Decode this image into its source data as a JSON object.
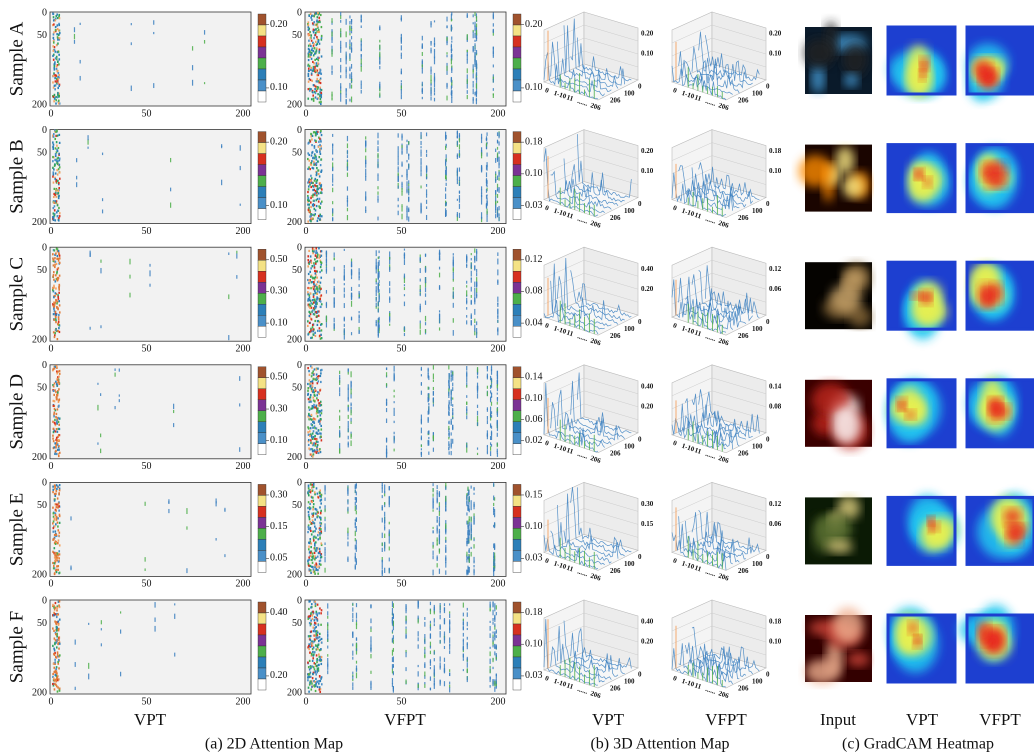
{
  "rows": [
    {
      "label": "Sample A",
      "vpt_colorbar": [
        "0.20",
        "0.10"
      ],
      "vfpt_colorbar": [
        "0.20",
        "0.10"
      ],
      "vpt_3d_z": [
        "0.20",
        "0.10"
      ],
      "vfpt_3d_z": [
        "0.20",
        "0.10"
      ]
    },
    {
      "label": "Sample B",
      "vpt_colorbar": [
        "0.20",
        "0.10"
      ],
      "vfpt_colorbar": [
        "0.18",
        "0.10",
        "0.03"
      ],
      "vpt_3d_z": [
        "0.20",
        "0.10"
      ],
      "vfpt_3d_z": [
        "0.18",
        "0.10"
      ]
    },
    {
      "label": "Sample C",
      "vpt_colorbar": [
        "0.50",
        "0.30",
        "0.10"
      ],
      "vfpt_colorbar": [
        "0.12",
        "0.08",
        "0.04"
      ],
      "vpt_3d_z": [
        "0.40",
        "0.20"
      ],
      "vfpt_3d_z": [
        "0.12",
        "0.06"
      ]
    },
    {
      "label": "Sample D",
      "vpt_colorbar": [
        "0.50",
        "0.30",
        "0.10"
      ],
      "vfpt_colorbar": [
        "0.14",
        "0.10",
        "0.06",
        "0.02"
      ],
      "vpt_3d_z": [
        "0.40",
        "0.20"
      ],
      "vfpt_3d_z": [
        "0.14",
        "0.08"
      ]
    },
    {
      "label": "Sample E",
      "vpt_colorbar": [
        "0.30",
        "0.15",
        "0.05"
      ],
      "vfpt_colorbar": [
        "0.15",
        "0.10",
        "0.03"
      ],
      "vpt_3d_z": [
        "0.30",
        "0.15"
      ],
      "vfpt_3d_z": [
        "0.12",
        "0.06"
      ]
    },
    {
      "label": "Sample F",
      "vpt_colorbar": [
        "0.40",
        "0.20"
      ],
      "vfpt_colorbar": [
        "0.18",
        "0.10",
        "0.03"
      ],
      "vpt_3d_z": [
        "0.40",
        "0.20"
      ],
      "vfpt_3d_z": [
        "0.18",
        "0.10"
      ]
    }
  ],
  "heatmap_axes": {
    "yticks": [
      "0",
      "50",
      "200"
    ],
    "xticks": [
      "0",
      "50",
      "200"
    ]
  },
  "axes_3d": {
    "front": [
      "0",
      "1-10",
      "11",
      "......",
      "206"
    ],
    "side": [
      "206",
      "100",
      "0"
    ]
  },
  "column_labels": [
    "VPT",
    "VFPT",
    "VPT",
    "VFPT",
    "Input",
    "VPT",
    "VFPT"
  ],
  "captions": [
    "(a) 2D Attention Map",
    "(b) 3D Attention Map",
    "(c) GradCAM Heatmap"
  ]
}
